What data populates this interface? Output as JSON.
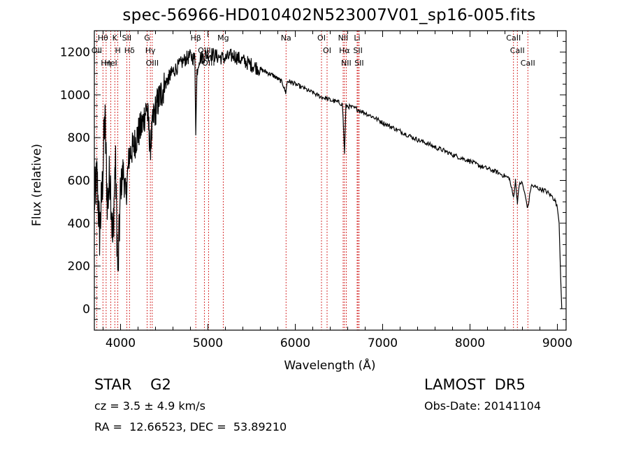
{
  "title": "spec-56966-HD010402N523007V01_sp16-005.fits",
  "info": {
    "object_type": "STAR    G2",
    "survey": "LAMOST  DR5",
    "cz": "cz = 3.5 ± 4.9 km/s",
    "obs_date": "Obs-Date: 20141104",
    "radec": "RA =  12.66523, DEC =  53.89210"
  },
  "chart_data": {
    "type": "line",
    "title": "spec-56966-HD010402N523007V01_sp16-005.fits",
    "xlabel": "Wavelength (Å)",
    "ylabel": "Flux (relative)",
    "xlim": [
      3700,
      9100
    ],
    "ylim": [
      -100,
      1300
    ],
    "x_ticks": [
      4000,
      5000,
      6000,
      7000,
      8000,
      9000
    ],
    "y_ticks": [
      0,
      200,
      400,
      600,
      800,
      1000,
      1200
    ],
    "grid": false,
    "series": [
      {
        "line_color": "#000000",
        "x": [
          3700,
          3730,
          3760,
          3790,
          3820,
          3850,
          3880,
          3910,
          3940,
          3970,
          4000,
          4030,
          4060,
          4100,
          4150,
          4200,
          4250,
          4300,
          4340,
          4380,
          4420,
          4460,
          4500,
          4550,
          4600,
          4650,
          4700,
          4750,
          4800,
          4850,
          4861,
          4875,
          4900,
          4950,
          5000,
          5050,
          5100,
          5150,
          5200,
          5250,
          5300,
          5350,
          5400,
          5450,
          5500,
          5550,
          5600,
          5650,
          5700,
          5750,
          5800,
          5850,
          5890,
          5910,
          5950,
          6000,
          6050,
          6100,
          6150,
          6200,
          6250,
          6300,
          6350,
          6400,
          6450,
          6500,
          6540,
          6563,
          6580,
          6620,
          6700,
          6800,
          6900,
          7000,
          7100,
          7200,
          7300,
          7400,
          7500,
          7600,
          7700,
          7800,
          7900,
          8000,
          8100,
          8200,
          8300,
          8400,
          8450,
          8498,
          8520,
          8542,
          8570,
          8600,
          8662,
          8700,
          8750,
          8800,
          8850,
          8900,
          8950,
          8980,
          9000,
          9020,
          9030,
          9040,
          9050
        ],
        "y": [
          500,
          620,
          350,
          560,
          900,
          480,
          650,
          300,
          700,
          150,
          560,
          650,
          520,
          720,
          760,
          820,
          860,
          950,
          760,
          900,
          960,
          1000,
          1040,
          1080,
          1110,
          1130,
          1150,
          1170,
          1180,
          1170,
          840,
          1110,
          1170,
          1180,
          1190,
          1190,
          1180,
          1175,
          1170,
          1180,
          1185,
          1170,
          1160,
          1150,
          1140,
          1130,
          1120,
          1110,
          1100,
          1090,
          1075,
          1060,
          1010,
          1065,
          1060,
          1050,
          1040,
          1030,
          1020,
          1010,
          1000,
          990,
          985,
          975,
          970,
          965,
          955,
          730,
          950,
          945,
          935,
          915,
          895,
          870,
          850,
          830,
          810,
          790,
          775,
          755,
          740,
          720,
          705,
          690,
          670,
          655,
          640,
          620,
          610,
          520,
          600,
          500,
          590,
          585,
          470,
          575,
          570,
          560,
          555,
          540,
          520,
          500,
          470,
          400,
          250,
          120,
          0
        ]
      }
    ],
    "line_annotations": [
      {
        "label": "Hθ",
        "wavelength": 3798
      },
      {
        "label": "OII",
        "wavelength": 3727
      },
      {
        "label": "Hη",
        "wavelength": 3835
      },
      {
        "label": "HeI",
        "wavelength": 3889
      },
      {
        "label": "K",
        "wavelength": 3934
      },
      {
        "label": "H",
        "wavelength": 3969
      },
      {
        "label": "SII",
        "wavelength": 4071
      },
      {
        "label": "Hδ",
        "wavelength": 4102
      },
      {
        "label": "G",
        "wavelength": 4304
      },
      {
        "label": "Hγ",
        "wavelength": 4341
      },
      {
        "label": "OIII",
        "wavelength": 4363
      },
      {
        "label": "Hβ",
        "wavelength": 4861
      },
      {
        "label": "OIII",
        "wavelength": 4959
      },
      {
        "label": "OIII",
        "wavelength": 5007
      },
      {
        "label": "Mg",
        "wavelength": 5175
      },
      {
        "label": "Na",
        "wavelength": 5894
      },
      {
        "label": "OI",
        "wavelength": 6300
      },
      {
        "label": "OI",
        "wavelength": 6364
      },
      {
        "label": "NII",
        "wavelength": 6548
      },
      {
        "label": "Hα",
        "wavelength": 6563
      },
      {
        "label": "NII",
        "wavelength": 6583
      },
      {
        "label": "Li",
        "wavelength": 6708
      },
      {
        "label": "SII",
        "wavelength": 6717
      },
      {
        "label": "SII",
        "wavelength": 6731
      },
      {
        "label": "CaII",
        "wavelength": 8498
      },
      {
        "label": "CaII",
        "wavelength": 8542
      },
      {
        "label": "CaII",
        "wavelength": 8662
      }
    ]
  },
  "colors": {
    "annotation_lines": "#cc0000",
    "spectrum": "#000000",
    "axes": "#000000"
  }
}
